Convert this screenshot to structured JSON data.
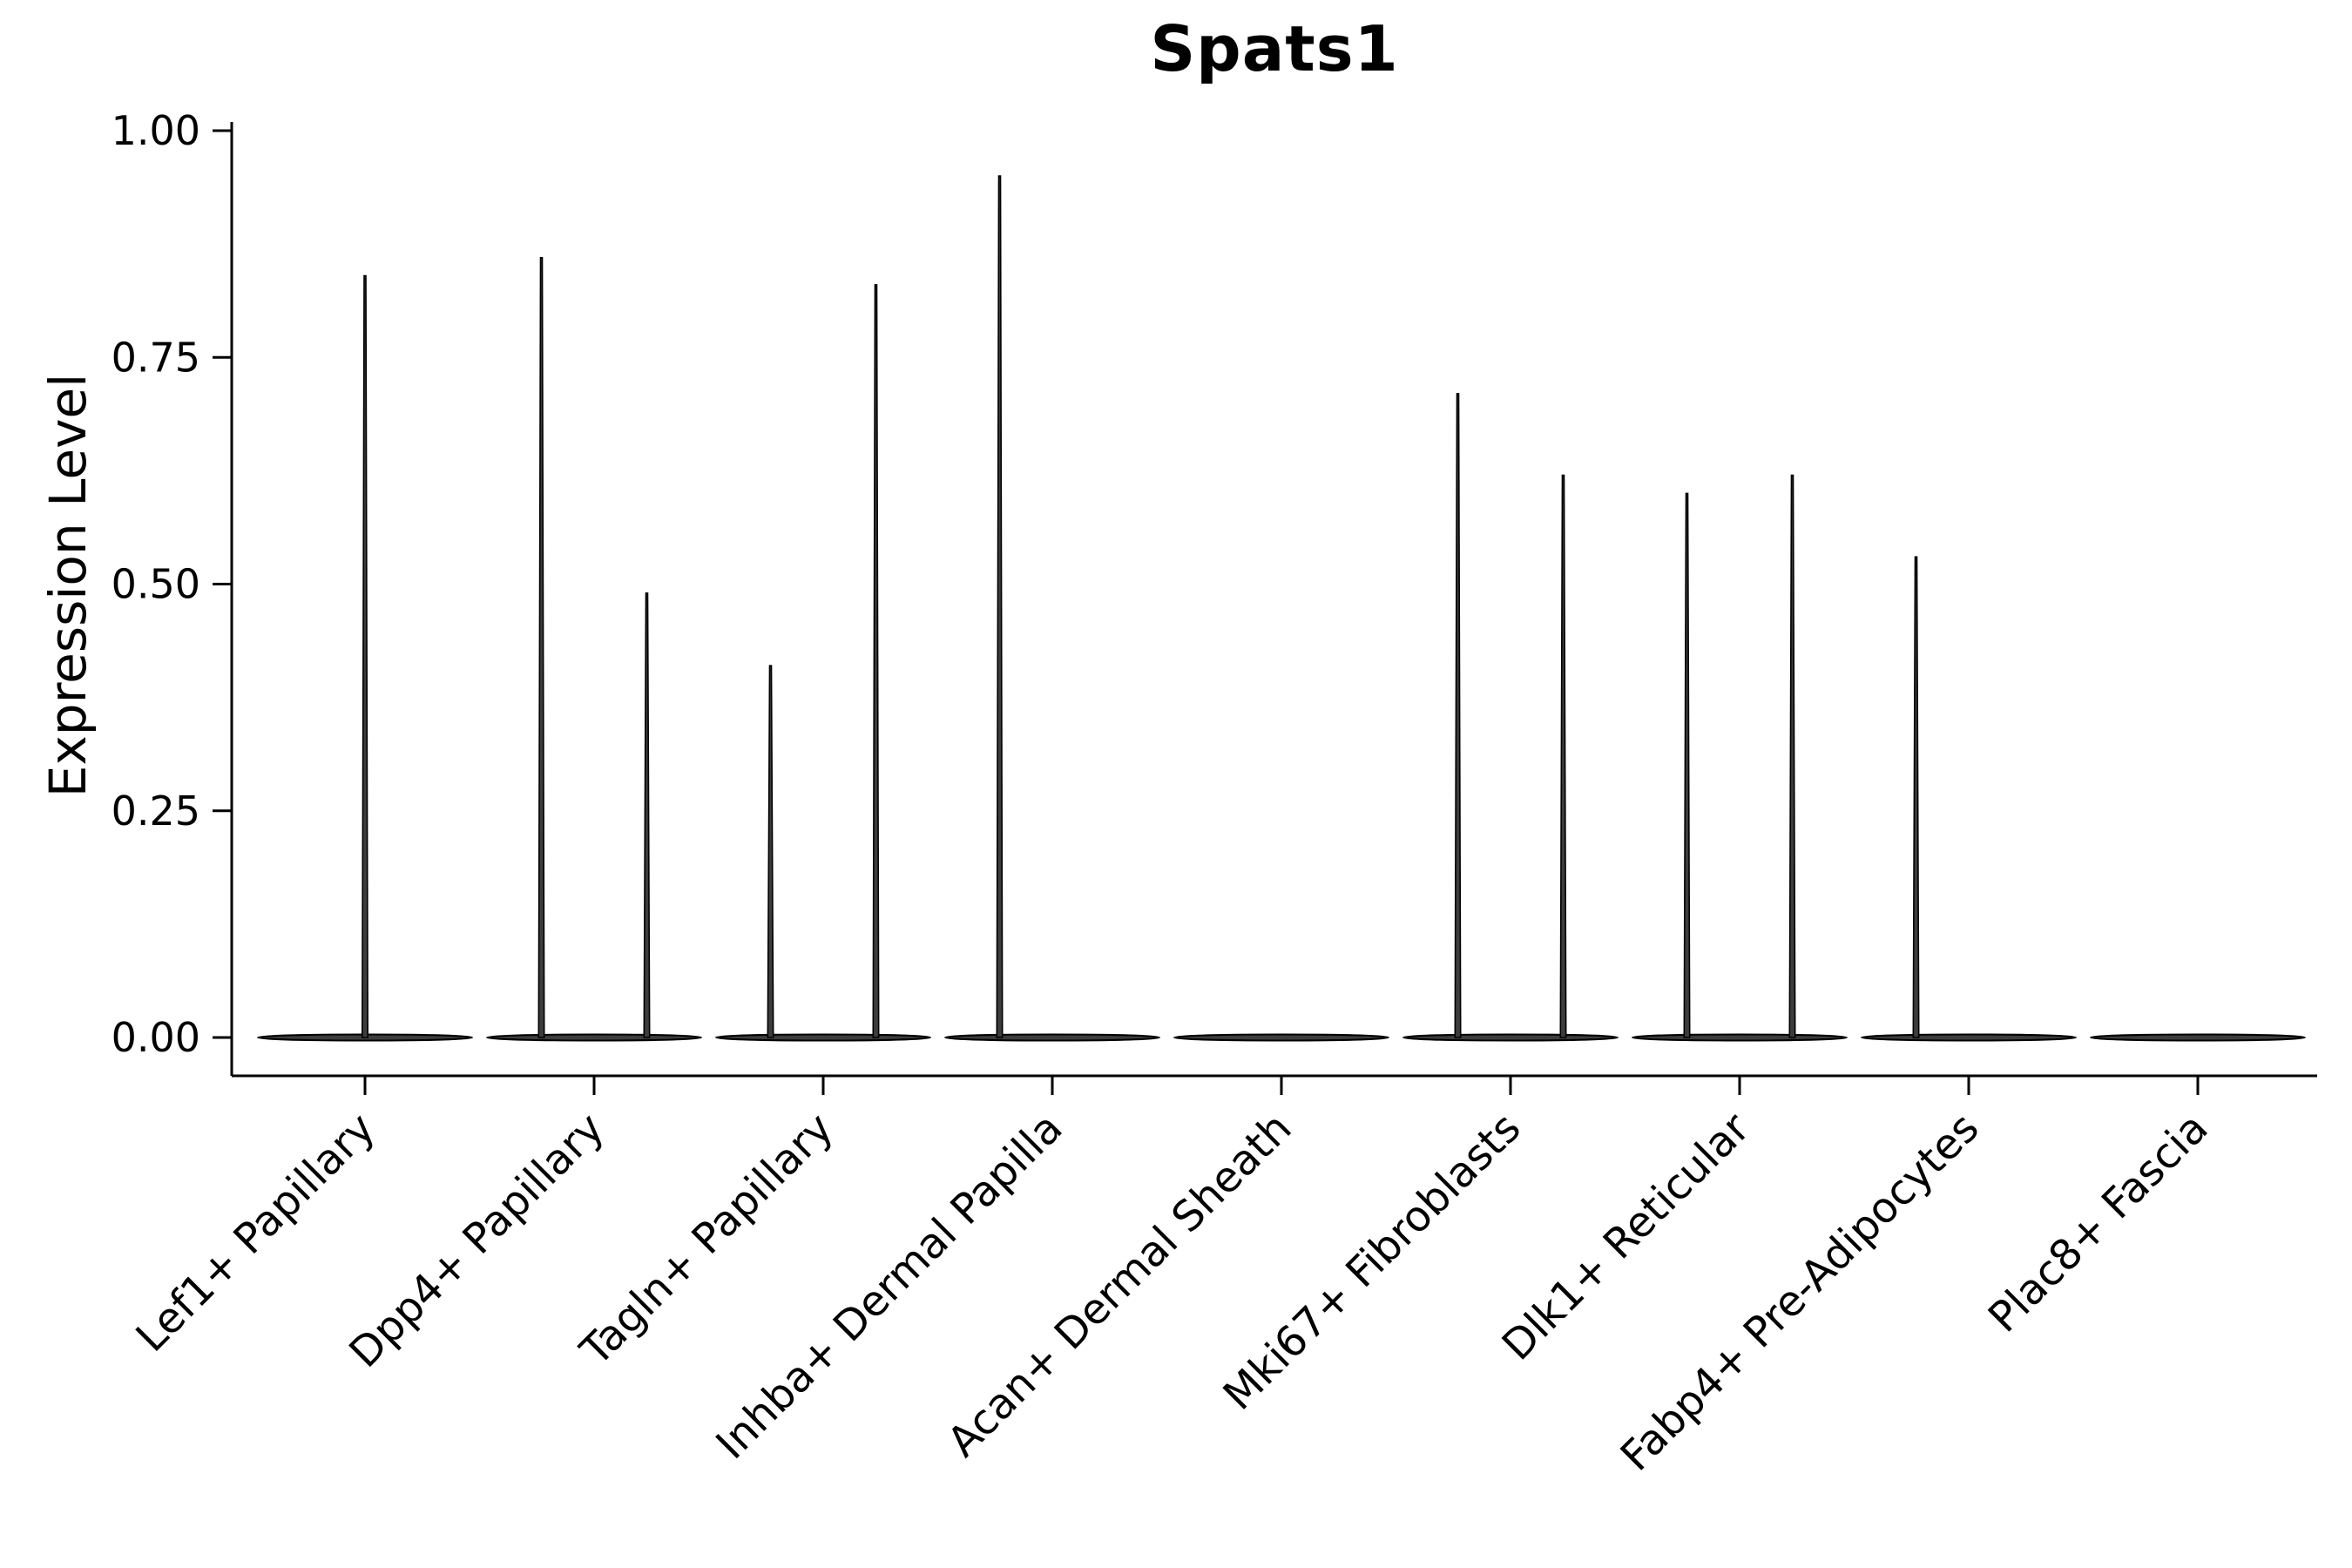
{
  "chart_data": {
    "type": "violin",
    "title": "Spats1",
    "ylabel": "Expression Level",
    "xlabel": "",
    "ylim": [
      0,
      1.0
    ],
    "yticks": [
      "0.00",
      "0.25",
      "0.50",
      "0.75",
      "1.00"
    ],
    "ytick_values": [
      0,
      0.25,
      0.5,
      0.75,
      1.0
    ],
    "grid": false,
    "legend": null,
    "categories": [
      "Lef1+ Papillary",
      "Dpp4+ Papillary",
      "Tagln+ Papillary",
      "Inhba+ Dermal Papilla",
      "Acan+ Dermal Sheath",
      "Mki67+ Fibroblasts",
      "Dlk1+ Reticular",
      "Fabp4+ Pre-Adipocytes",
      "Plac8+ Fascia"
    ],
    "violins": [
      {
        "category": "Lef1+ Papillary",
        "baseline": 0,
        "spikes": [
          {
            "offset": 0.0,
            "max": 0.84
          }
        ]
      },
      {
        "category": "Dpp4+ Papillary",
        "baseline": 0,
        "spikes": [
          {
            "offset": -0.23,
            "max": 0.86
          },
          {
            "offset": 0.23,
            "max": 0.49
          }
        ]
      },
      {
        "category": "Tagln+ Papillary",
        "baseline": 0,
        "spikes": [
          {
            "offset": -0.23,
            "max": 0.41
          },
          {
            "offset": 0.23,
            "max": 0.83
          }
        ]
      },
      {
        "category": "Inhba+ Dermal Papilla",
        "baseline": 0,
        "spikes": [
          {
            "offset": -0.23,
            "max": 0.95
          }
        ]
      },
      {
        "category": "Acan+ Dermal Sheath",
        "baseline": 0,
        "spikes": []
      },
      {
        "category": "Mki67+ Fibroblasts",
        "baseline": 0,
        "spikes": [
          {
            "offset": -0.23,
            "max": 0.71
          },
          {
            "offset": 0.23,
            "max": 0.62
          }
        ]
      },
      {
        "category": "Dlk1+ Reticular",
        "baseline": 0,
        "spikes": [
          {
            "offset": -0.23,
            "max": 0.6
          },
          {
            "offset": 0.23,
            "max": 0.62
          }
        ]
      },
      {
        "category": "Fabp4+ Pre-Adipocytes",
        "baseline": 0,
        "spikes": [
          {
            "offset": -0.23,
            "max": 0.53
          }
        ]
      },
      {
        "category": "Plac8+ Fascia",
        "baseline": 0,
        "spikes": []
      }
    ],
    "colors": {
      "violin_fill": "#3d3d3d",
      "violin_edge": "#000000",
      "axis": "#000000",
      "text": "#000000",
      "background": "#ffffff"
    }
  }
}
